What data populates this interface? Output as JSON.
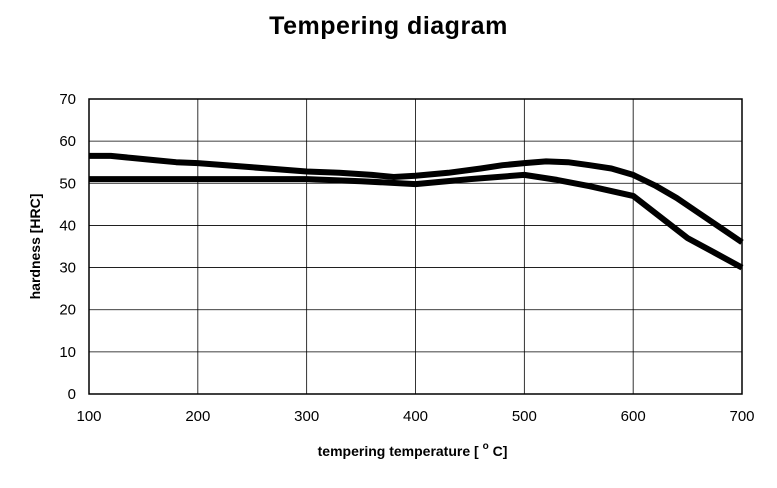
{
  "chart_data": {
    "type": "line",
    "title": "Tempering diagram",
    "xlabel_text": "tempering temperature [",
    "xlabel_degree": "o",
    "xlabel_unit": "C]",
    "ylabel": "hardness [HRC]",
    "xlim": [
      100,
      700
    ],
    "ylim": [
      0,
      70
    ],
    "xticks": [
      100,
      200,
      300,
      400,
      500,
      600,
      700
    ],
    "yticks": [
      0,
      10,
      20,
      30,
      40,
      50,
      60,
      70
    ],
    "grid": true,
    "line_color": "#000000",
    "series": [
      {
        "x": [
          100,
          120,
          140,
          160,
          180,
          200,
          250,
          300,
          330,
          360,
          380,
          400,
          430,
          460,
          480,
          500,
          520,
          540,
          560,
          580,
          600,
          620,
          640,
          660,
          680,
          700
        ],
        "y": [
          56.5,
          56.5,
          56,
          55.5,
          55,
          54.8,
          53.8,
          52.8,
          52.5,
          52,
          51.5,
          51.8,
          52.5,
          53.5,
          54.3,
          54.8,
          55.2,
          55,
          54.3,
          53.5,
          52,
          49.5,
          46.5,
          43,
          39.5,
          36
        ]
      },
      {
        "x": [
          100,
          200,
          300,
          350,
          400,
          450,
          500,
          530,
          560,
          600,
          625,
          650,
          675,
          700
        ],
        "y": [
          51,
          51,
          51,
          50.5,
          49.8,
          51,
          52,
          50.8,
          49.3,
          47,
          42,
          37,
          33.5,
          30
        ]
      }
    ]
  }
}
